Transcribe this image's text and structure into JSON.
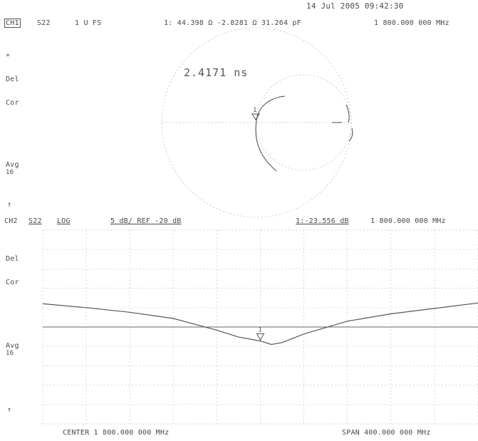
{
  "header": {
    "date_time": "14 Jul 2005  09:42:30",
    "channel": "CH1",
    "param": "S22",
    "format": "1 U FS",
    "marker": "1: 44.398 Ω  -2.8281 Ω  31.264 pF",
    "freq": "1 800.000 000 MHz"
  },
  "ch1_side": {
    "star": "*",
    "del": "Del",
    "cor": "Cor",
    "avg": "Avg",
    "avg_n": "16",
    "arrow": "↑"
  },
  "delay_readout": "2.4171 ns",
  "ch2": {
    "channel": "CH2",
    "param": "S22",
    "format": "LOG",
    "scale": "5 dB/ REF -20 dB",
    "marker": "1:-23.556 dB",
    "freq": "1 800.000 000 MHz"
  },
  "ch2_side": {
    "del": "Del",
    "cor": "Cor",
    "avg": "Avg",
    "avg_n": "16",
    "arrow": "↑"
  },
  "footer": {
    "center": "CENTER 1 800.000 000 MHz",
    "span": "SPAN  400.000 000 MHz"
  },
  "chart_data": [
    {
      "type": "smith",
      "title": "",
      "marker": {
        "label": "1",
        "resistance_ohm": 44.398,
        "reactance_ohm": -2.8281,
        "capacitance_pF": 31.264,
        "freq_MHz": 1800
      },
      "electrical_delay_ns": 2.4171
    },
    {
      "type": "line",
      "title": "",
      "xlabel": "",
      "ylabel": "",
      "xlim": [
        1600,
        2000
      ],
      "reference_dB": -20,
      "scale_dB_per_div": 5,
      "ylim": [
        -45,
        5
      ],
      "x": [
        1600,
        1640,
        1680,
        1720,
        1760,
        1780,
        1800,
        1810,
        1820,
        1840,
        1880,
        1920,
        1960,
        2000
      ],
      "series": [
        {
          "values": [
            -14.0,
            -15.0,
            -16.2,
            -17.8,
            -20.8,
            -22.6,
            -23.6,
            -24.5,
            -24.0,
            -21.8,
            -18.5,
            -16.6,
            -15.2,
            -13.8
          ]
        }
      ],
      "marker": {
        "label": "1",
        "x": 1800,
        "y": -23.556
      }
    }
  ]
}
